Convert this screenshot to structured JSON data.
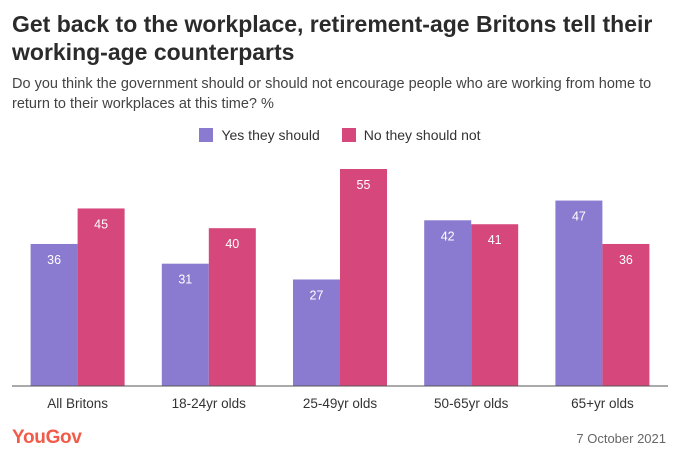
{
  "title": "Get back to the workplace, retirement-age Britons tell their working-age counterparts",
  "subtitle": "Do you think the government should or should not encourage people who are working from home to return to their workplaces at this time? %",
  "brand": "YouGov",
  "date": "7 October 2021",
  "colors": {
    "yes": "#8a7bd1",
    "no": "#d6477b",
    "logo": "#f15c4a"
  },
  "chart_data": {
    "type": "bar",
    "categories": [
      "All Britons",
      "18-24yr olds",
      "25-49yr olds",
      "50-65yr olds",
      "65+yr olds"
    ],
    "series": [
      {
        "name": "Yes they should",
        "values": [
          36,
          31,
          27,
          42,
          47
        ],
        "color": "#8a7bd1"
      },
      {
        "name": "No they should not",
        "values": [
          45,
          40,
          55,
          41,
          36
        ],
        "color": "#d6477b"
      }
    ],
    "ylim": [
      0,
      55
    ],
    "grid": false,
    "legend_position": "top-center"
  }
}
